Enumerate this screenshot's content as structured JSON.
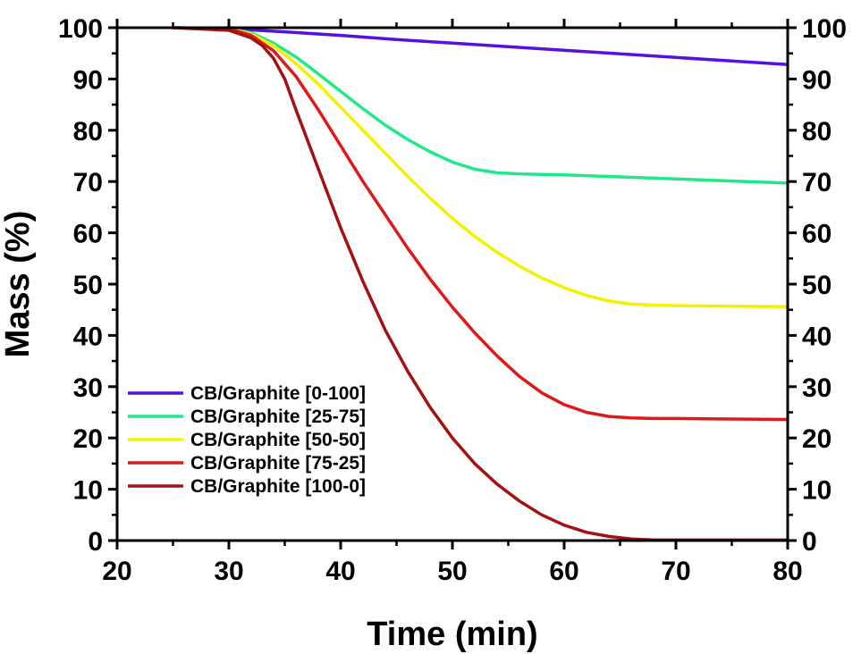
{
  "chart_data": {
    "type": "line",
    "title": "",
    "xlabel": "Time (min)",
    "ylabel": "Mass (%)",
    "xlim": [
      20,
      80
    ],
    "ylim": [
      0,
      100
    ],
    "x_ticks": [
      "20",
      "30",
      "40",
      "50",
      "60",
      "70",
      "80"
    ],
    "y_ticks": [
      "0",
      "10",
      "20",
      "30",
      "40",
      "50",
      "60",
      "70",
      "80",
      "90",
      "100"
    ],
    "grid": false,
    "legend_position": "bottom-left",
    "mirror_axes": "top-right",
    "series": [
      {
        "name": "CB/Graphite [0-100]",
        "color": "#5511dd",
        "x": [
          25,
          30,
          35,
          40,
          45,
          50,
          55,
          60,
          65,
          70,
          75,
          80
        ],
        "y": [
          100,
          99.8,
          99.2,
          98.5,
          97.7,
          97.0,
          96.3,
          95.6,
          94.9,
          94.2,
          93.5,
          92.8
        ]
      },
      {
        "name": "CB/Graphite [25-75]",
        "color": "#22e888",
        "x": [
          25,
          30,
          32,
          34,
          36,
          38,
          40,
          42,
          44,
          46,
          48,
          50,
          52,
          54,
          56,
          58,
          60,
          65,
          70,
          75,
          80
        ],
        "y": [
          100,
          99.8,
          99.0,
          97.0,
          94.3,
          91.0,
          87.6,
          84.2,
          81.0,
          78.2,
          75.8,
          73.8,
          72.4,
          71.7,
          71.5,
          71.4,
          71.3,
          70.9,
          70.5,
          70.1,
          69.7
        ]
      },
      {
        "name": "CB/Graphite [50-50]",
        "color": "#f2f200",
        "x": [
          25,
          30,
          32,
          34,
          36,
          38,
          40,
          42,
          44,
          46,
          48,
          50,
          52,
          54,
          56,
          58,
          60,
          62,
          64,
          66,
          68,
          70,
          75,
          80
        ],
        "y": [
          100,
          99.8,
          98.8,
          96.5,
          93.0,
          89.0,
          84.5,
          80.0,
          75.5,
          71.0,
          66.8,
          62.8,
          59.3,
          56.2,
          53.5,
          51.2,
          49.3,
          47.8,
          46.7,
          46.1,
          45.9,
          45.8,
          45.7,
          45.6
        ]
      },
      {
        "name": "CB/Graphite [75-25]",
        "color": "#dd1a1a",
        "x": [
          25,
          30,
          32,
          34,
          36,
          38,
          40,
          42,
          44,
          46,
          48,
          50,
          52,
          54,
          56,
          58,
          60,
          62,
          64,
          66,
          68,
          70,
          75,
          80
        ],
        "y": [
          100,
          99.8,
          98.5,
          95.5,
          90.5,
          84.0,
          77.0,
          70.0,
          63.5,
          57.0,
          51.0,
          45.5,
          40.5,
          36.0,
          32.0,
          28.8,
          26.5,
          25.0,
          24.2,
          23.9,
          23.8,
          23.8,
          23.7,
          23.6
        ]
      },
      {
        "name": "CB/Graphite [100-0]",
        "color": "#a31212",
        "x": [
          25,
          30,
          32,
          33,
          34,
          35,
          36,
          38,
          40,
          42,
          44,
          46,
          48,
          50,
          52,
          54,
          56,
          58,
          60,
          62,
          64,
          66,
          68,
          70,
          75,
          80
        ],
        "y": [
          100,
          99.5,
          98.0,
          96.5,
          94.0,
          90.0,
          84.0,
          72.5,
          61.0,
          50.5,
          41.0,
          33.0,
          26.0,
          20.0,
          15.0,
          11.0,
          7.7,
          5.0,
          3.0,
          1.6,
          0.8,
          0.3,
          0.1,
          0.1,
          0.1,
          0.1
        ]
      }
    ]
  }
}
